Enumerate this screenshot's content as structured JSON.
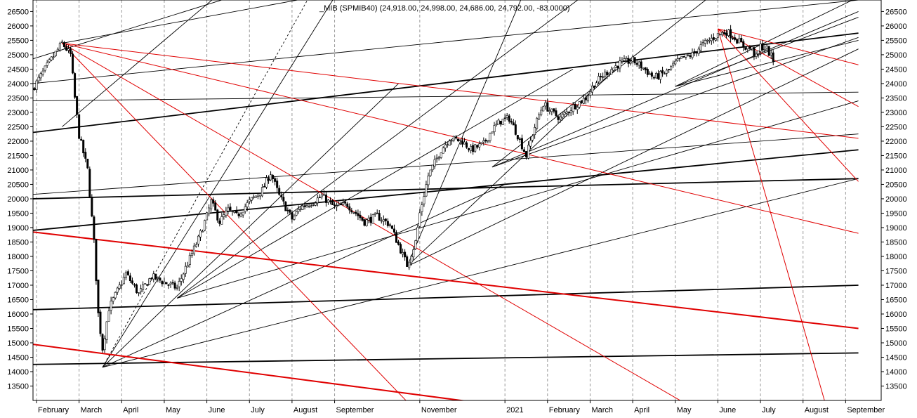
{
  "chart_data": {
    "type": "candlestick",
    "title": "_MIB (SPMIB40) (24,918.00, 24,998.00, 24,686.00, 24,792.00, -83.0000)",
    "xlabel": "",
    "ylabel": "",
    "ylim": [
      13000,
      26900
    ],
    "y_ticks": [
      13500,
      14000,
      14500,
      15000,
      15500,
      16000,
      16500,
      17000,
      17500,
      18000,
      18500,
      19000,
      19500,
      20000,
      20500,
      21000,
      21500,
      22000,
      22500,
      23000,
      23500,
      24000,
      24500,
      25000,
      25500,
      26000,
      26500
    ],
    "x_ticks": [
      {
        "label": "February",
        "month": 0
      },
      {
        "label": "March",
        "month": 1
      },
      {
        "label": "April",
        "month": 2
      },
      {
        "label": "May",
        "month": 3
      },
      {
        "label": "June",
        "month": 4
      },
      {
        "label": "July",
        "month": 5
      },
      {
        "label": "August",
        "month": 6
      },
      {
        "label": "September",
        "month": 7
      },
      {
        "label": "November",
        "month": 9
      },
      {
        "label": "2021",
        "month": 11
      },
      {
        "label": "February",
        "month": 12
      },
      {
        "label": "March",
        "month": 13
      },
      {
        "label": "April",
        "month": 14
      },
      {
        "label": "May",
        "month": 15
      },
      {
        "label": "June",
        "month": 16
      },
      {
        "label": "July",
        "month": 17
      },
      {
        "label": "August",
        "month": 18
      },
      {
        "label": "September",
        "month": 19
      }
    ],
    "grid": "vertical-dashed",
    "price_path": [
      [
        -0.1,
        23800
      ],
      [
        0.2,
        24500
      ],
      [
        0.6,
        25400
      ],
      [
        0.8,
        25000
      ],
      [
        0.9,
        23500
      ],
      [
        1.0,
        22200
      ],
      [
        1.2,
        21000
      ],
      [
        1.35,
        18500
      ],
      [
        1.45,
        16000
      ],
      [
        1.55,
        14800
      ],
      [
        1.7,
        16200
      ],
      [
        1.9,
        16800
      ],
      [
        2.1,
        17400
      ],
      [
        2.4,
        16700
      ],
      [
        2.7,
        17300
      ],
      [
        3.0,
        17100
      ],
      [
        3.3,
        16900
      ],
      [
        3.5,
        17600
      ],
      [
        3.8,
        18600
      ],
      [
        4.0,
        19400
      ],
      [
        4.1,
        19900
      ],
      [
        4.3,
        19200
      ],
      [
        4.5,
        19600
      ],
      [
        4.7,
        19400
      ],
      [
        5.0,
        19900
      ],
      [
        5.3,
        20300
      ],
      [
        5.5,
        20900
      ],
      [
        5.7,
        20100
      ],
      [
        6.0,
        19300
      ],
      [
        6.2,
        19700
      ],
      [
        6.5,
        19900
      ],
      [
        6.7,
        20100
      ],
      [
        7.0,
        19700
      ],
      [
        7.3,
        19800
      ],
      [
        7.7,
        19200
      ],
      [
        8.0,
        19400
      ],
      [
        8.3,
        19100
      ],
      [
        8.5,
        18400
      ],
      [
        8.7,
        17700
      ],
      [
        8.9,
        18500
      ],
      [
        9.0,
        19500
      ],
      [
        9.2,
        20800
      ],
      [
        9.5,
        21700
      ],
      [
        9.7,
        22100
      ],
      [
        10.0,
        22000
      ],
      [
        10.2,
        21700
      ],
      [
        10.5,
        21900
      ],
      [
        10.7,
        22400
      ],
      [
        10.9,
        22700
      ],
      [
        11.1,
        22800
      ],
      [
        11.3,
        22200
      ],
      [
        11.5,
        21500
      ],
      [
        11.7,
        22500
      ],
      [
        11.9,
        23300
      ],
      [
        12.1,
        23000
      ],
      [
        12.3,
        22800
      ],
      [
        12.6,
        23200
      ],
      [
        12.9,
        23500
      ],
      [
        13.1,
        24000
      ],
      [
        13.4,
        24400
      ],
      [
        13.7,
        24700
      ],
      [
        14.0,
        24800
      ],
      [
        14.2,
        24600
      ],
      [
        14.5,
        24200
      ],
      [
        14.8,
        24400
      ],
      [
        15.0,
        24700
      ],
      [
        15.2,
        24900
      ],
      [
        15.4,
        25000
      ],
      [
        15.6,
        25300
      ],
      [
        15.8,
        25500
      ],
      [
        16.0,
        25700
      ],
      [
        16.2,
        25800
      ],
      [
        16.4,
        25600
      ],
      [
        16.6,
        25300
      ],
      [
        16.8,
        25200
      ],
      [
        16.9,
        24900
      ],
      [
        17.0,
        25300
      ],
      [
        17.15,
        25200
      ],
      [
        17.3,
        24800
      ]
    ],
    "black_lines": [
      [
        [
          -0.1,
          22300
        ],
        [
          19.3,
          25750
        ]
      ],
      [
        [
          -0.1,
          20000
        ],
        [
          19.3,
          20700
        ]
      ],
      [
        [
          -0.1,
          18900
        ],
        [
          19.3,
          21700
        ]
      ],
      [
        [
          -0.1,
          16150
        ],
        [
          19.3,
          17000
        ]
      ],
      [
        [
          -0.1,
          14250
        ],
        [
          19.3,
          14650
        ]
      ],
      [
        [
          -0.1,
          23400
        ],
        [
          19.3,
          23700
        ]
      ],
      [
        [
          -0.1,
          20150
        ],
        [
          19.3,
          22250
        ]
      ],
      [
        [
          -0.1,
          24850
        ],
        [
          5.0,
          27200
        ]
      ],
      [
        [
          -0.1,
          24000
        ],
        [
          19.3,
          26900
        ]
      ],
      [
        [
          0.6,
          25400
        ],
        [
          6.5,
          27000
        ]
      ],
      [
        [
          0.6,
          22500
        ],
        [
          4.2,
          27000
        ]
      ],
      [
        [
          1.55,
          14150
        ],
        [
          7.0,
          27000
        ]
      ],
      [
        [
          1.55,
          14150
        ],
        [
          8.5,
          24000
        ]
      ],
      [
        [
          1.55,
          14150
        ],
        [
          11.0,
          20500
        ]
      ],
      [
        [
          1.55,
          14150
        ],
        [
          19.3,
          20700
        ]
      ],
      [
        [
          3.3,
          16550
        ],
        [
          12.8,
          27000
        ]
      ],
      [
        [
          3.3,
          16550
        ],
        [
          12.6,
          24500
        ]
      ],
      [
        [
          3.3,
          16550
        ],
        [
          19.3,
          23400
        ]
      ],
      [
        [
          8.7,
          17650
        ],
        [
          11.4,
          27000
        ]
      ],
      [
        [
          8.7,
          17650
        ],
        [
          13.6,
          24500
        ]
      ],
      [
        [
          8.7,
          17650
        ],
        [
          19.3,
          25200
        ]
      ],
      [
        [
          10.7,
          21100
        ],
        [
          15.8,
          27000
        ]
      ],
      [
        [
          10.7,
          21100
        ],
        [
          19.3,
          26500
        ]
      ],
      [
        [
          10.7,
          21100
        ],
        [
          19.3,
          25600
        ]
      ],
      [
        [
          15.0,
          23900
        ],
        [
          19.3,
          27000
        ]
      ],
      [
        [
          15.0,
          23900
        ],
        [
          19.3,
          26300
        ]
      ],
      [
        [
          15.0,
          23900
        ],
        [
          19.3,
          25500
        ]
      ]
    ],
    "dashed_lines": [
      [
        [
          1.55,
          14150
        ],
        [
          6.4,
          27000
        ]
      ]
    ],
    "red_lines": [
      {
        "p": [
          [
            -0.1,
            18850
          ],
          [
            19.3,
            15500
          ]
        ],
        "w": 2
      },
      {
        "p": [
          [
            -0.1,
            14950
          ],
          [
            11.0,
            12800
          ]
        ],
        "w": 2
      },
      {
        "p": [
          [
            0.6,
            25400
          ],
          [
            19.3,
            22100
          ]
        ],
        "w": 1
      },
      {
        "p": [
          [
            0.6,
            25400
          ],
          [
            19.3,
            18800
          ]
        ],
        "w": 1
      },
      {
        "p": [
          [
            0.6,
            25400
          ],
          [
            9.0,
            12500
          ]
        ],
        "w": 1
      },
      {
        "p": [
          [
            0.6,
            25400
          ],
          [
            15.7,
            12500
          ]
        ],
        "w": 1
      },
      {
        "p": [
          [
            16.0,
            25900
          ],
          [
            19.3,
            24650
          ]
        ],
        "w": 1
      },
      {
        "p": [
          [
            16.0,
            25900
          ],
          [
            19.3,
            23200
          ]
        ],
        "w": 1
      },
      {
        "p": [
          [
            16.0,
            25900
          ],
          [
            19.3,
            20600
          ]
        ],
        "w": 1
      },
      {
        "p": [
          [
            16.0,
            25900
          ],
          [
            18.6,
            12500
          ]
        ],
        "w": 1
      }
    ],
    "colors": {
      "support_lines": "#000000",
      "red_lines": "#e00000",
      "grid": "#9a9a9a",
      "candles": "#000000"
    }
  }
}
